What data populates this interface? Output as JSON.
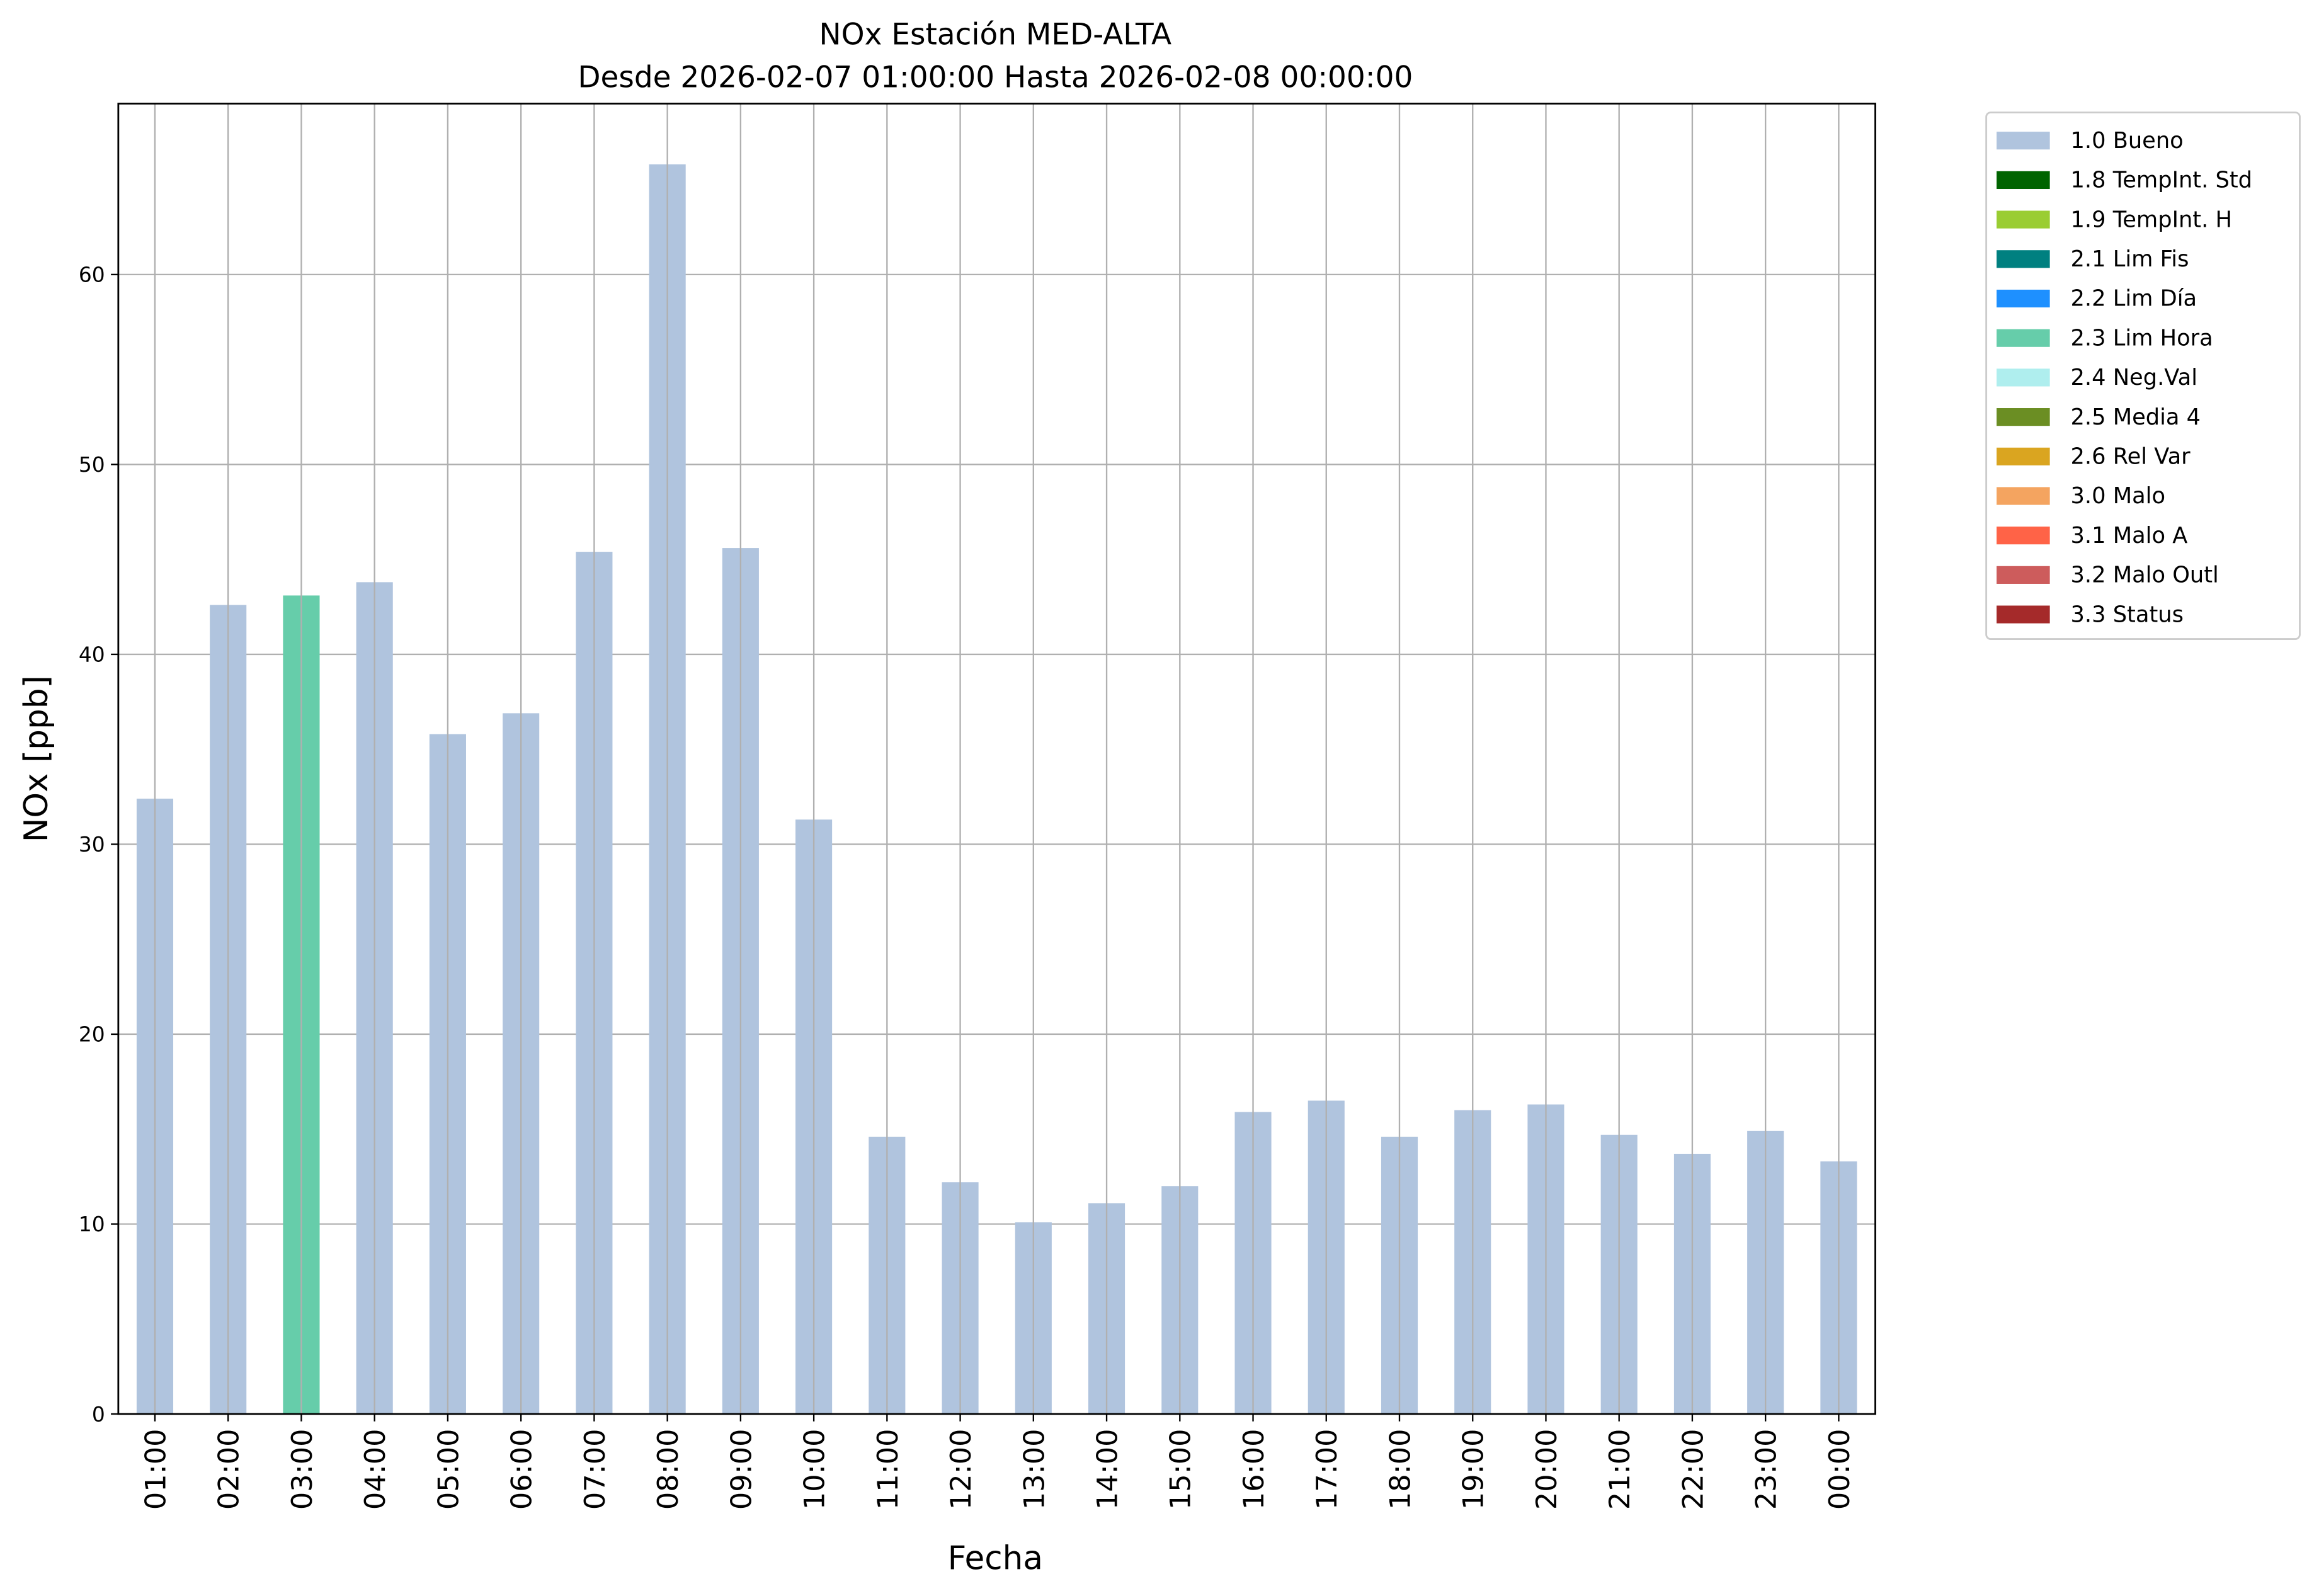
{
  "chart_data": {
    "type": "bar",
    "title": "NOx Estación MED-ALTA",
    "subtitle": "Desde 2026-02-07 01:00:00 Hasta 2026-02-08 00:00:00",
    "xlabel": "Fecha",
    "ylabel": "NOx [ppb]",
    "ylim": [
      0,
      69
    ],
    "yticks": [
      0,
      10,
      20,
      30,
      40,
      50,
      60
    ],
    "grid": true,
    "legend_position": "outside-top-right",
    "categories": [
      "01:00",
      "02:00",
      "03:00",
      "04:00",
      "05:00",
      "06:00",
      "07:00",
      "08:00",
      "09:00",
      "10:00",
      "11:00",
      "12:00",
      "13:00",
      "14:00",
      "15:00",
      "16:00",
      "17:00",
      "18:00",
      "19:00",
      "20:00",
      "21:00",
      "22:00",
      "23:00",
      "00:00"
    ],
    "values": [
      32.4,
      42.6,
      43.1,
      43.8,
      35.8,
      36.9,
      45.4,
      65.8,
      45.6,
      31.3,
      14.6,
      12.2,
      10.1,
      11.1,
      12.0,
      15.9,
      16.5,
      14.6,
      16.0,
      16.3,
      14.7,
      13.7,
      14.9,
      13.3
    ],
    "flags": [
      "1.0 Bueno",
      "1.0 Bueno",
      "2.3 Lim Hora",
      "1.0 Bueno",
      "1.0 Bueno",
      "1.0 Bueno",
      "1.0 Bueno",
      "1.0 Bueno",
      "1.0 Bueno",
      "1.0 Bueno",
      "1.0 Bueno",
      "1.0 Bueno",
      "1.0 Bueno",
      "1.0 Bueno",
      "1.0 Bueno",
      "1.0 Bueno",
      "1.0 Bueno",
      "1.0 Bueno",
      "1.0 Bueno",
      "1.0 Bueno",
      "1.0 Bueno",
      "1.0 Bueno",
      "1.0 Bueno",
      "1.0 Bueno"
    ],
    "legend": [
      {
        "label": "1.0 Bueno",
        "color": "#b0c4de"
      },
      {
        "label": "1.8 TempInt. Std",
        "color": "#006400"
      },
      {
        "label": "1.9 TempInt. H",
        "color": "#9acd32"
      },
      {
        "label": "2.1 Lim Fis",
        "color": "#008080"
      },
      {
        "label": "2.2 Lim Día",
        "color": "#1e90ff"
      },
      {
        "label": "2.3 Lim Hora",
        "color": "#66cdaa"
      },
      {
        "label": "2.4 Neg.Val",
        "color": "#afeeee"
      },
      {
        "label": "2.5 Media 4",
        "color": "#6b8e23"
      },
      {
        "label": "2.6 Rel Var",
        "color": "#daa520"
      },
      {
        "label": "3.0 Malo",
        "color": "#f4a460"
      },
      {
        "label": "3.1 Malo A",
        "color": "#ff6347"
      },
      {
        "label": "3.2 Malo Outl",
        "color": "#cd5c5c"
      },
      {
        "label": "3.3 Status",
        "color": "#a52a2a"
      }
    ]
  }
}
